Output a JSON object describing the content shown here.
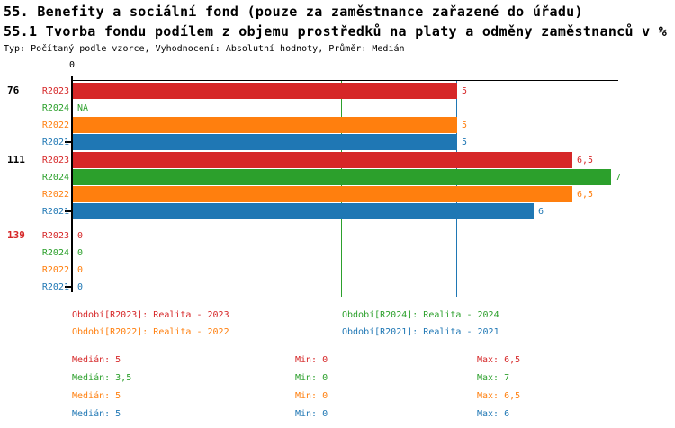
{
  "header": {
    "title1": "55. Benefity a sociální fond (pouze za zaměstnance zařazené do úřadu)",
    "title2": "55.1 Tvorba fondu podílem z objemu prostředků na platy a odměny zaměstnanců v %",
    "meta": "Typ: Počítaný podle vzorce, Vyhodnocení: Absolutní hodnoty, Průměr: Medián"
  },
  "colors": {
    "r2023": "#d62728",
    "r2024": "#2ca02c",
    "r2022": "#ff7f0e",
    "r2021": "#1f77b4",
    "axis": "#000000",
    "alert_group": "#d62728"
  },
  "chart_data": {
    "type": "bar",
    "orientation": "horizontal",
    "xlim": [
      0,
      7.1
    ],
    "x_zero_tick_label": "0",
    "grid": false,
    "series_order": [
      "R2023",
      "R2024",
      "R2022",
      "R2021"
    ],
    "reference_lines": [
      {
        "name": "median-r2024",
        "value": 3.5,
        "color": "#2ca02c"
      },
      {
        "name": "median-r2021",
        "value": 5,
        "color": "#1f77b4"
      }
    ],
    "groups": [
      {
        "label": "76",
        "label_color": "#000000",
        "bars": [
          {
            "period": "R2023",
            "value": 5,
            "display": "5",
            "color": "#d62728"
          },
          {
            "period": "R2024",
            "value": null,
            "display": "NA",
            "color": "#2ca02c"
          },
          {
            "period": "R2022",
            "value": 5,
            "display": "5",
            "color": "#ff7f0e"
          },
          {
            "period": "R2021",
            "value": 5,
            "display": "5",
            "color": "#1f77b4"
          }
        ]
      },
      {
        "label": "111",
        "label_color": "#000000",
        "bars": [
          {
            "period": "R2023",
            "value": 6.5,
            "display": "6,5",
            "color": "#d62728"
          },
          {
            "period": "R2024",
            "value": 7,
            "display": "7",
            "color": "#2ca02c"
          },
          {
            "period": "R2022",
            "value": 6.5,
            "display": "6,5",
            "color": "#ff7f0e"
          },
          {
            "period": "R2021",
            "value": 6,
            "display": "6",
            "color": "#1f77b4"
          }
        ]
      },
      {
        "label": "139",
        "label_color": "#d62728",
        "bars": [
          {
            "period": "R2023",
            "value": 0,
            "display": "0",
            "color": "#d62728"
          },
          {
            "period": "R2024",
            "value": 0,
            "display": "0",
            "color": "#2ca02c"
          },
          {
            "period": "R2022",
            "value": 0,
            "display": "0",
            "color": "#ff7f0e"
          },
          {
            "period": "R2021",
            "value": 0,
            "display": "0",
            "color": "#1f77b4"
          }
        ]
      }
    ]
  },
  "legend": [
    {
      "text": "Období[R2023]: Realita - 2023",
      "color": "#d62728"
    },
    {
      "text": "Období[R2024]: Realita - 2024",
      "color": "#2ca02c"
    },
    {
      "text": "Období[R2022]: Realita - 2022",
      "color": "#ff7f0e"
    },
    {
      "text": "Období[R2021]: Realita - 2021",
      "color": "#1f77b4"
    }
  ],
  "stats": [
    {
      "median": "Medián: 5",
      "min": "Min: 0",
      "max": "Max: 6,5",
      "color": "#d62728"
    },
    {
      "median": "Medián: 3,5",
      "min": "Min: 0",
      "max": "Max: 7",
      "color": "#2ca02c"
    },
    {
      "median": "Medián: 5",
      "min": "Min: 0",
      "max": "Max: 6,5",
      "color": "#ff7f0e"
    },
    {
      "median": "Medián: 5",
      "min": "Min: 0",
      "max": "Max: 6",
      "color": "#1f77b4"
    }
  ]
}
